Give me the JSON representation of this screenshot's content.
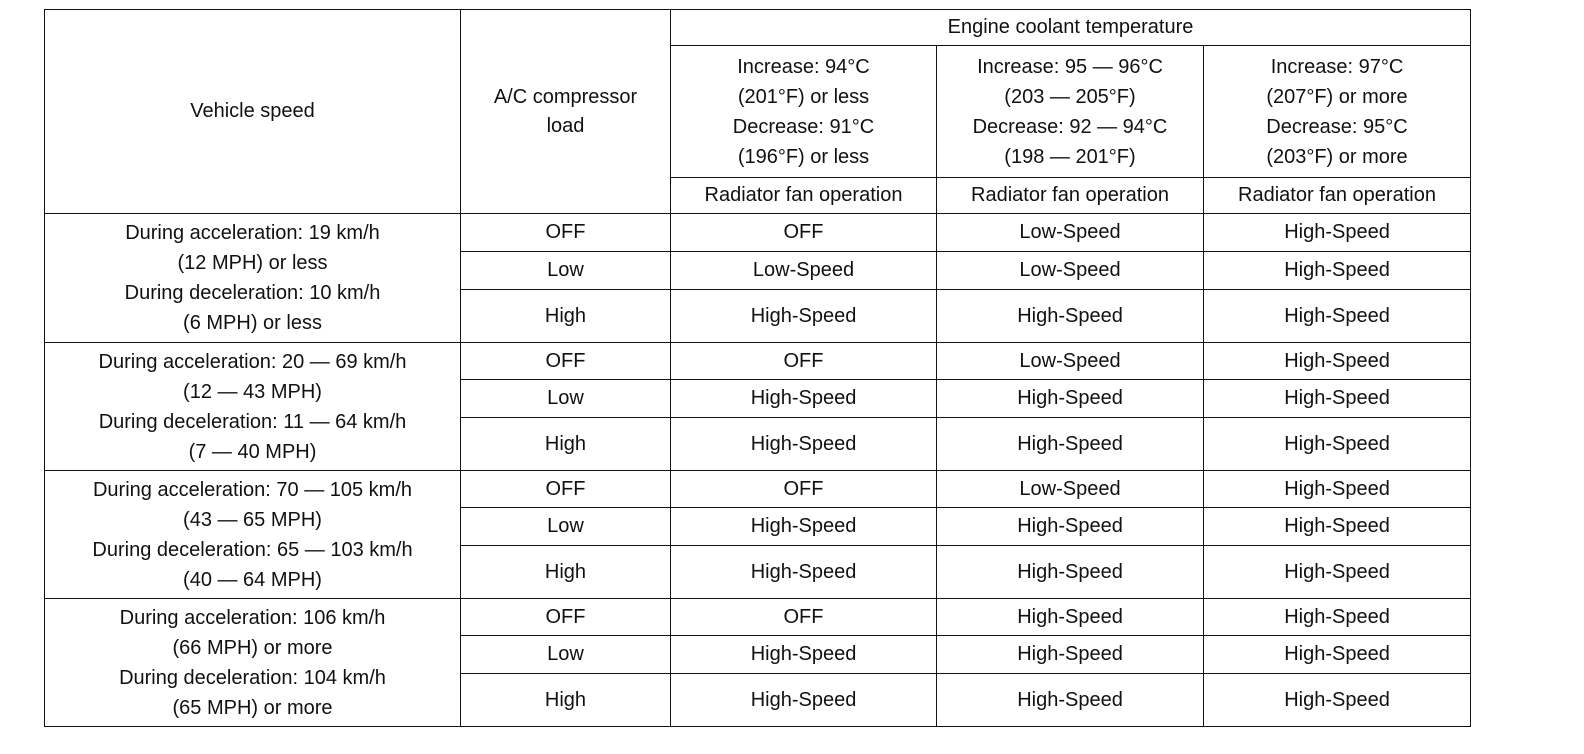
{
  "header": {
    "vehicle_speed": "Vehicle speed",
    "ac_load_line1": "A/C compressor",
    "ac_load_line2": "load",
    "engine_coolant": "Engine coolant temperature",
    "conditions": [
      {
        "l1": "Increase: 94°C",
        "l2": "(201°F) or less",
        "l3": "Decrease: 91°C",
        "l4": "(196°F) or less"
      },
      {
        "l1": "Increase: 95 — 96°C",
        "l2": "(203 — 205°F)",
        "l3": "Decrease: 92 — 94°C",
        "l4": "(198 — 201°F)"
      },
      {
        "l1": "Increase: 97°C",
        "l2": "(207°F) or more",
        "l3": "Decrease: 95°C",
        "l4": "(203°F) or more"
      }
    ],
    "fan_operation": [
      "Radiator fan operation",
      "Radiator fan operation",
      "Radiator fan operation"
    ]
  },
  "groups": [
    {
      "speed": [
        "During acceleration: 19 km/h",
        "(12 MPH) or less",
        "During deceleration: 10 km/h",
        "(6 MPH) or less"
      ],
      "rows": [
        {
          "load": "OFF",
          "ops": [
            "OFF",
            "Low-Speed",
            "High-Speed"
          ]
        },
        {
          "load": "Low",
          "ops": [
            "Low-Speed",
            "Low-Speed",
            "High-Speed"
          ]
        },
        {
          "load": "High",
          "ops": [
            "High-Speed",
            "High-Speed",
            "High-Speed"
          ]
        }
      ]
    },
    {
      "speed": [
        "During acceleration: 20 — 69 km/h",
        "(12 — 43 MPH)",
        "During deceleration: 11 — 64 km/h",
        "(7 — 40 MPH)"
      ],
      "rows": [
        {
          "load": "OFF",
          "ops": [
            "OFF",
            "Low-Speed",
            "High-Speed"
          ]
        },
        {
          "load": "Low",
          "ops": [
            "High-Speed",
            "High-Speed",
            "High-Speed"
          ]
        },
        {
          "load": "High",
          "ops": [
            "High-Speed",
            "High-Speed",
            "High-Speed"
          ]
        }
      ]
    },
    {
      "speed": [
        "During acceleration: 70 — 105 km/h",
        "(43 — 65 MPH)",
        "During deceleration: 65 — 103 km/h",
        "(40 — 64 MPH)"
      ],
      "rows": [
        {
          "load": "OFF",
          "ops": [
            "OFF",
            "Low-Speed",
            "High-Speed"
          ]
        },
        {
          "load": "Low",
          "ops": [
            "High-Speed",
            "High-Speed",
            "High-Speed"
          ]
        },
        {
          "load": "High",
          "ops": [
            "High-Speed",
            "High-Speed",
            "High-Speed"
          ]
        }
      ]
    },
    {
      "speed": [
        "During acceleration: 106 km/h",
        "(66 MPH) or more",
        "During deceleration: 104 km/h",
        "(65 MPH) or more"
      ],
      "rows": [
        {
          "load": "OFF",
          "ops": [
            "OFF",
            "High-Speed",
            "High-Speed"
          ]
        },
        {
          "load": "Low",
          "ops": [
            "High-Speed",
            "High-Speed",
            "High-Speed"
          ]
        },
        {
          "load": "High",
          "ops": [
            "High-Speed",
            "High-Speed",
            "High-Speed"
          ]
        }
      ]
    }
  ]
}
